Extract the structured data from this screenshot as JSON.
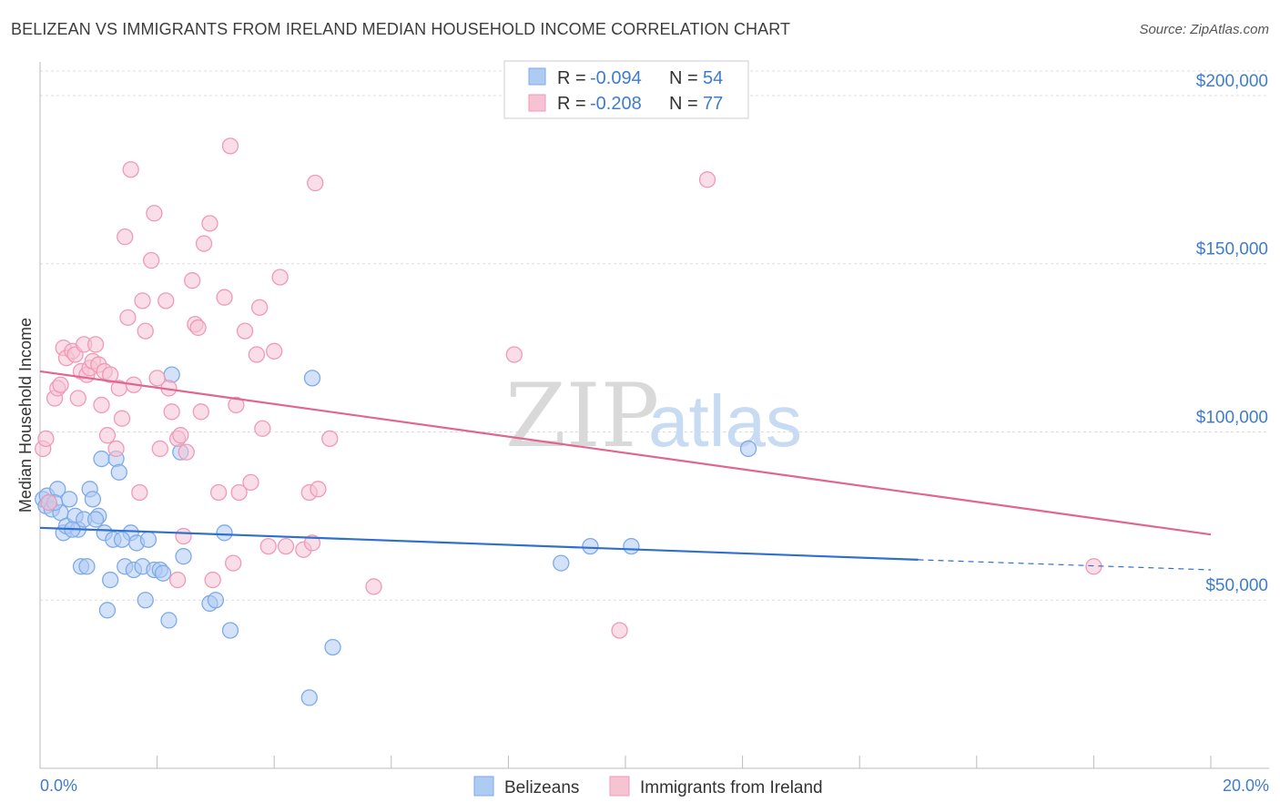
{
  "title": "BELIZEAN VS IMMIGRANTS FROM IRELAND MEDIAN HOUSEHOLD INCOME CORRELATION CHART",
  "source": "Source: ZipAtlas.com",
  "watermark": {
    "zip": "ZIP",
    "atlas": "atlas"
  },
  "legend_top": [
    {
      "r_label": "R =",
      "r_value": "-0.094",
      "n_label": "N =",
      "n_value": "54"
    },
    {
      "r_label": "R =",
      "r_value": "-0.208",
      "n_label": "N =",
      "n_value": "77"
    }
  ],
  "colors": {
    "blue_fill": "#aecbf2",
    "blue_stroke": "#7eaae8",
    "blue_line": "#2f6fcf",
    "pink_fill": "#f6c3d3",
    "pink_stroke": "#f09ab5",
    "pink_line": "#e0668f",
    "axis_text": "#3f7ccc",
    "grid": "#dddddd"
  },
  "chart_data": {
    "type": "scatter",
    "title": "BELIZEAN VS IMMIGRANTS FROM IRELAND MEDIAN HOUSEHOLD INCOME CORRELATION CHART",
    "xlabel": "",
    "ylabel": "Median Household Income",
    "xlim": [
      0,
      20
    ],
    "ylim": [
      0,
      210000
    ],
    "x_tick_labels": [
      "0.0%",
      "20.0%"
    ],
    "y_ticks": [
      {
        "value": 50000,
        "label": "$50,000"
      },
      {
        "value": 100000,
        "label": "$100,000"
      },
      {
        "value": 150000,
        "label": "$150,000"
      },
      {
        "value": 200000,
        "label": "$200,000"
      }
    ],
    "grid": true,
    "legend_position": "bottom",
    "series": [
      {
        "name": "Belizeans",
        "color": "#aecbf2",
        "trend": {
          "x": [
            0.0,
            15.0
          ],
          "y": [
            71500,
            62000
          ],
          "extended_to_x": 20.0,
          "extended_y": 59000
        },
        "points": [
          [
            0.05,
            80000
          ],
          [
            0.1,
            78000
          ],
          [
            0.12,
            81000
          ],
          [
            0.15,
            79000
          ],
          [
            0.2,
            77000
          ],
          [
            0.3,
            83000
          ],
          [
            0.35,
            76000
          ],
          [
            0.4,
            70000
          ],
          [
            0.45,
            72000
          ],
          [
            0.5,
            80000
          ],
          [
            0.6,
            75000
          ],
          [
            0.65,
            71000
          ],
          [
            0.7,
            60000
          ],
          [
            0.75,
            74000
          ],
          [
            0.8,
            60000
          ],
          [
            0.85,
            83000
          ],
          [
            0.9,
            80000
          ],
          [
            1.0,
            75000
          ],
          [
            1.05,
            92000
          ],
          [
            1.1,
            70000
          ],
          [
            1.15,
            47000
          ],
          [
            1.2,
            56000
          ],
          [
            1.25,
            68000
          ],
          [
            1.3,
            92000
          ],
          [
            1.35,
            88000
          ],
          [
            1.45,
            60000
          ],
          [
            1.55,
            70000
          ],
          [
            1.6,
            59000
          ],
          [
            1.65,
            67000
          ],
          [
            1.75,
            60000
          ],
          [
            1.8,
            50000
          ],
          [
            1.85,
            68000
          ],
          [
            1.95,
            59000
          ],
          [
            2.05,
            59000
          ],
          [
            2.2,
            44000
          ],
          [
            2.25,
            117000
          ],
          [
            2.4,
            94000
          ],
          [
            2.45,
            63000
          ],
          [
            2.9,
            49000
          ],
          [
            3.0,
            50000
          ],
          [
            3.15,
            70000
          ],
          [
            3.25,
            41000
          ],
          [
            4.6,
            21000
          ],
          [
            4.65,
            116000
          ],
          [
            5.0,
            36000
          ],
          [
            8.9,
            61000
          ],
          [
            9.4,
            66000
          ],
          [
            10.1,
            66000
          ],
          [
            12.1,
            95000
          ],
          [
            0.25,
            79000
          ],
          [
            0.55,
            71000
          ],
          [
            0.95,
            74000
          ],
          [
            1.4,
            68000
          ],
          [
            2.1,
            58000
          ]
        ]
      },
      {
        "name": "Immigrants from Ireland",
        "color": "#f6c3d3",
        "trend": {
          "x": [
            0.0,
            20.0
          ],
          "y": [
            118000,
            69500
          ]
        },
        "points": [
          [
            0.05,
            95000
          ],
          [
            0.1,
            98000
          ],
          [
            0.15,
            79000
          ],
          [
            0.25,
            110000
          ],
          [
            0.3,
            113000
          ],
          [
            0.35,
            114000
          ],
          [
            0.4,
            125000
          ],
          [
            0.45,
            122000
          ],
          [
            0.55,
            124000
          ],
          [
            0.6,
            123000
          ],
          [
            0.65,
            110000
          ],
          [
            0.7,
            118000
          ],
          [
            0.75,
            126000
          ],
          [
            0.8,
            117000
          ],
          [
            0.85,
            119000
          ],
          [
            0.9,
            121000
          ],
          [
            0.95,
            126000
          ],
          [
            1.0,
            120000
          ],
          [
            1.05,
            108000
          ],
          [
            1.1,
            118000
          ],
          [
            1.15,
            99000
          ],
          [
            1.2,
            117000
          ],
          [
            1.3,
            95000
          ],
          [
            1.35,
            113000
          ],
          [
            1.4,
            104000
          ],
          [
            1.45,
            158000
          ],
          [
            1.5,
            134000
          ],
          [
            1.55,
            178000
          ],
          [
            1.6,
            114000
          ],
          [
            1.7,
            82000
          ],
          [
            1.75,
            139000
          ],
          [
            1.8,
            130000
          ],
          [
            1.9,
            151000
          ],
          [
            1.95,
            165000
          ],
          [
            2.0,
            116000
          ],
          [
            2.05,
            95000
          ],
          [
            2.15,
            139000
          ],
          [
            2.2,
            113000
          ],
          [
            2.25,
            106000
          ],
          [
            2.35,
            98000
          ],
          [
            2.4,
            99000
          ],
          [
            2.45,
            69000
          ],
          [
            2.5,
            94000
          ],
          [
            2.6,
            145000
          ],
          [
            2.65,
            132000
          ],
          [
            2.7,
            131000
          ],
          [
            2.75,
            106000
          ],
          [
            2.8,
            156000
          ],
          [
            2.9,
            162000
          ],
          [
            2.95,
            56000
          ],
          [
            3.05,
            82000
          ],
          [
            3.15,
            140000
          ],
          [
            3.3,
            61000
          ],
          [
            3.35,
            108000
          ],
          [
            3.4,
            82000
          ],
          [
            3.5,
            130000
          ],
          [
            3.6,
            85000
          ],
          [
            3.7,
            123000
          ],
          [
            3.75,
            137000
          ],
          [
            3.8,
            101000
          ],
          [
            3.9,
            66000
          ],
          [
            4.0,
            124000
          ],
          [
            4.1,
            146000
          ],
          [
            4.2,
            66000
          ],
          [
            4.5,
            65000
          ],
          [
            4.6,
            82000
          ],
          [
            4.65,
            67000
          ],
          [
            4.7,
            174000
          ],
          [
            4.75,
            83000
          ],
          [
            4.95,
            98000
          ],
          [
            5.7,
            54000
          ],
          [
            3.25,
            185000
          ],
          [
            8.1,
            123000
          ],
          [
            9.9,
            41000
          ],
          [
            11.4,
            175000
          ],
          [
            18.0,
            60000
          ],
          [
            2.35,
            56000
          ]
        ]
      }
    ]
  },
  "legend_bottom": [
    {
      "label": "Belizeans"
    },
    {
      "label": "Immigrants from Ireland"
    }
  ]
}
